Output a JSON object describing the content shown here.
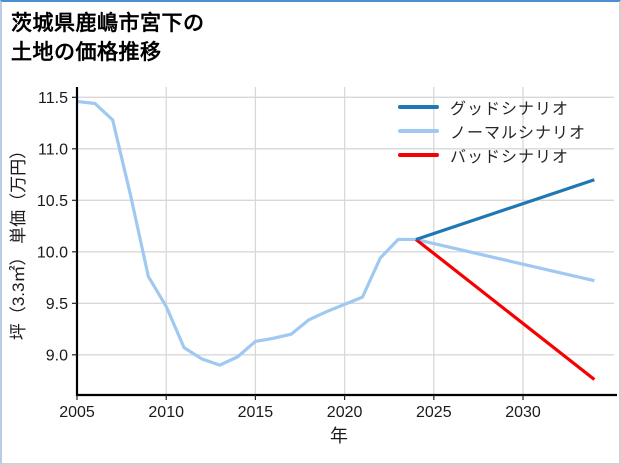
{
  "title": {
    "line1": "茨城県鹿嶋市宮下の",
    "line2": "土地の価格推移"
  },
  "chart_data": {
    "type": "line",
    "title": "茨城県鹿嶋市宮下の土地の価格推移",
    "xlabel": "年",
    "ylabel": "坪（3.3㎡） 単価（万円）",
    "xlim": [
      2005,
      2035.1
    ],
    "ylim": [
      8.61,
      11.6
    ],
    "xticks": [
      "2005",
      "2010",
      "2015",
      "2020",
      "2025",
      "2030"
    ],
    "yticks": [
      "9.0",
      "9.5",
      "10.0",
      "10.5",
      "11.0",
      "11.5"
    ],
    "grid": true,
    "legend_position": "upper-right-no-frame",
    "history": {
      "color": "#9fc9f0",
      "x": [
        2005,
        2006,
        2007,
        2008,
        2009,
        2010,
        2011,
        2012,
        2013,
        2014,
        2015,
        2016,
        2017,
        2018,
        2019,
        2020,
        2021,
        2022,
        2023,
        2024
      ],
      "values": [
        11.46,
        11.44,
        11.28,
        10.55,
        9.76,
        9.47,
        9.07,
        8.96,
        8.9,
        8.98,
        9.13,
        9.16,
        9.2,
        9.34,
        9.42,
        9.49,
        9.56,
        9.94,
        10.12,
        10.12
      ]
    },
    "series": [
      {
        "name": "グッドシナリオ",
        "color": "#1f77b4",
        "x": [
          2024,
          2034
        ],
        "values": [
          10.12,
          10.7
        ]
      },
      {
        "name": "ノーマルシナリオ",
        "color": "#9fc9f0",
        "x": [
          2024,
          2034
        ],
        "values": [
          10.12,
          9.72
        ]
      },
      {
        "name": "バッドシナリオ",
        "color": "#f70000",
        "x": [
          2024,
          2034
        ],
        "values": [
          10.12,
          8.76
        ]
      }
    ],
    "style": {
      "grid_color": "#d8d8d8",
      "spine_color": "#000000",
      "tick_text_color": "#1a1a1a",
      "line_width": 3.2
    }
  }
}
